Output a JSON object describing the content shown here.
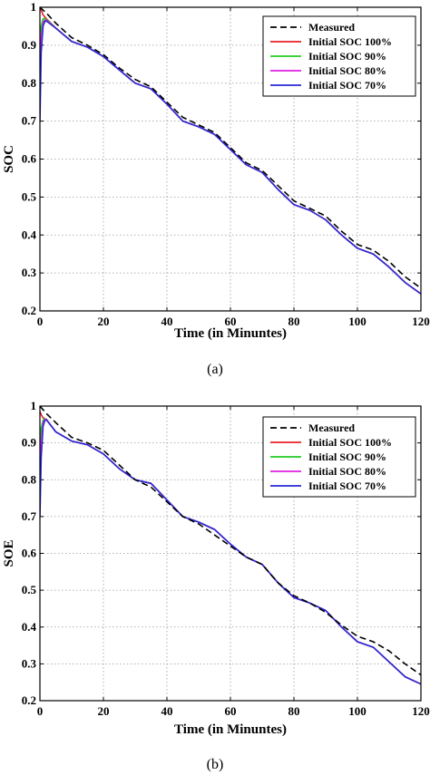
{
  "chart_data": [
    {
      "type": "line",
      "caption": "(a)",
      "xlabel": "Time (in Minuntes)",
      "ylabel": "SOC",
      "xlim": [
        0,
        120
      ],
      "ylim": [
        0.2,
        1.0
      ],
      "xticks": [
        "0",
        "20",
        "40",
        "60",
        "80",
        "100",
        "120"
      ],
      "yticks": [
        "0.2",
        "0.3",
        "0.4",
        "0.5",
        "0.6",
        "0.7",
        "0.8",
        "0.9",
        "1"
      ],
      "grid": true,
      "legend_position": "top-right",
      "series": [
        {
          "name": "Measured",
          "color": "#000000",
          "style": "dashed",
          "x": [
            0,
            2,
            5,
            10,
            15,
            20,
            25,
            30,
            35,
            40,
            45,
            50,
            55,
            60,
            65,
            70,
            75,
            80,
            85,
            90,
            95,
            100,
            105,
            110,
            115,
            120
          ],
          "y": [
            1.0,
            0.985,
            0.958,
            0.92,
            0.9,
            0.875,
            0.84,
            0.81,
            0.79,
            0.75,
            0.71,
            0.69,
            0.67,
            0.63,
            0.59,
            0.57,
            0.53,
            0.49,
            0.47,
            0.45,
            0.41,
            0.375,
            0.36,
            0.33,
            0.29,
            0.26
          ]
        },
        {
          "name": "Initial SOC 100%",
          "color": "#e8202a",
          "style": "solid",
          "x": [
            0,
            0.5,
            1,
            1.5,
            2,
            5,
            10,
            15,
            20,
            25,
            30,
            35,
            40,
            45,
            50,
            55,
            60,
            65,
            70,
            75,
            80,
            85,
            90,
            95,
            100,
            105,
            110,
            115,
            120
          ],
          "y": [
            1.0,
            0.99,
            0.98,
            0.975,
            0.97,
            0.945,
            0.91,
            0.895,
            0.87,
            0.835,
            0.8,
            0.785,
            0.745,
            0.7,
            0.685,
            0.665,
            0.625,
            0.585,
            0.565,
            0.52,
            0.48,
            0.465,
            0.44,
            0.4,
            0.365,
            0.35,
            0.315,
            0.275,
            0.245
          ]
        },
        {
          "name": "Initial SOC 90%",
          "color": "#22cc22",
          "style": "solid",
          "x": [
            0,
            0.4,
            1,
            1.5,
            2,
            5,
            10,
            15,
            20,
            25,
            30,
            35,
            40,
            45,
            50,
            55,
            60,
            65,
            70,
            75,
            80,
            85,
            90,
            95,
            100,
            105,
            110,
            115,
            120
          ],
          "y": [
            0.9,
            0.95,
            0.97,
            0.97,
            0.968,
            0.945,
            0.91,
            0.895,
            0.87,
            0.835,
            0.8,
            0.785,
            0.745,
            0.7,
            0.685,
            0.665,
            0.625,
            0.585,
            0.565,
            0.52,
            0.48,
            0.465,
            0.44,
            0.4,
            0.365,
            0.35,
            0.315,
            0.275,
            0.245
          ]
        },
        {
          "name": "Initial SOC 80%",
          "color": "#e020e0",
          "style": "solid",
          "x": [
            0,
            0.4,
            1,
            1.5,
            2,
            5,
            10,
            15,
            20,
            25,
            30,
            35,
            40,
            45,
            50,
            55,
            60,
            65,
            70,
            75,
            80,
            85,
            90,
            95,
            100,
            105,
            110,
            115,
            120
          ],
          "y": [
            0.8,
            0.92,
            0.96,
            0.966,
            0.966,
            0.945,
            0.91,
            0.895,
            0.87,
            0.835,
            0.8,
            0.785,
            0.745,
            0.7,
            0.685,
            0.665,
            0.625,
            0.585,
            0.565,
            0.52,
            0.48,
            0.465,
            0.44,
            0.4,
            0.365,
            0.35,
            0.315,
            0.275,
            0.245
          ]
        },
        {
          "name": "Initial SOC 70%",
          "color": "#2a2ad8",
          "style": "solid",
          "x": [
            0,
            0.4,
            1,
            1.5,
            2,
            5,
            10,
            15,
            20,
            25,
            30,
            35,
            40,
            45,
            50,
            55,
            60,
            65,
            70,
            75,
            80,
            85,
            90,
            95,
            100,
            105,
            110,
            115,
            120
          ],
          "y": [
            0.7,
            0.88,
            0.95,
            0.962,
            0.964,
            0.945,
            0.91,
            0.895,
            0.87,
            0.835,
            0.8,
            0.785,
            0.745,
            0.7,
            0.685,
            0.665,
            0.625,
            0.585,
            0.565,
            0.52,
            0.48,
            0.465,
            0.44,
            0.4,
            0.365,
            0.35,
            0.315,
            0.275,
            0.245
          ]
        }
      ]
    },
    {
      "type": "line",
      "caption": "(b)",
      "xlabel": "Time (in Minuntes)",
      "ylabel": "SOE",
      "xlim": [
        0,
        120
      ],
      "ylim": [
        0.2,
        1.0
      ],
      "xticks": [
        "0",
        "20",
        "40",
        "60",
        "80",
        "100",
        "120"
      ],
      "yticks": [
        "0.2",
        "0.3",
        "0.4",
        "0.5",
        "0.6",
        "0.7",
        "0.8",
        "0.9",
        "1"
      ],
      "grid": true,
      "legend_position": "top-right",
      "series": [
        {
          "name": "Measured",
          "color": "#000000",
          "style": "dashed",
          "x": [
            0,
            2,
            5,
            10,
            15,
            20,
            25,
            30,
            35,
            40,
            45,
            50,
            55,
            60,
            65,
            70,
            75,
            80,
            85,
            90,
            95,
            100,
            105,
            110,
            115,
            120
          ],
          "y": [
            1.0,
            0.98,
            0.955,
            0.915,
            0.9,
            0.88,
            0.84,
            0.8,
            0.78,
            0.74,
            0.7,
            0.68,
            0.65,
            0.62,
            0.59,
            0.57,
            0.52,
            0.485,
            0.465,
            0.44,
            0.405,
            0.375,
            0.36,
            0.335,
            0.3,
            0.27
          ]
        },
        {
          "name": "Initial SOC 100%",
          "color": "#e8202a",
          "style": "solid",
          "x": [
            0,
            0.5,
            1,
            1.5,
            2,
            5,
            10,
            15,
            20,
            25,
            30,
            35,
            40,
            45,
            50,
            55,
            60,
            65,
            70,
            75,
            80,
            85,
            90,
            95,
            100,
            105,
            110,
            115,
            120
          ],
          "y": [
            0.985,
            0.975,
            0.968,
            0.966,
            0.964,
            0.93,
            0.905,
            0.895,
            0.87,
            0.83,
            0.8,
            0.79,
            0.745,
            0.7,
            0.685,
            0.665,
            0.625,
            0.59,
            0.57,
            0.52,
            0.48,
            0.465,
            0.445,
            0.4,
            0.36,
            0.345,
            0.305,
            0.265,
            0.245
          ]
        },
        {
          "name": "Initial SOC 90%",
          "color": "#22cc22",
          "style": "solid",
          "x": [
            0,
            0.4,
            1,
            1.5,
            2,
            5,
            10,
            15,
            20,
            25,
            30,
            35,
            40,
            45,
            50,
            55,
            60,
            65,
            70,
            75,
            80,
            85,
            90,
            95,
            100,
            105,
            110,
            115,
            120
          ],
          "y": [
            0.9,
            0.94,
            0.962,
            0.965,
            0.964,
            0.93,
            0.905,
            0.895,
            0.87,
            0.83,
            0.8,
            0.79,
            0.745,
            0.7,
            0.685,
            0.665,
            0.625,
            0.59,
            0.57,
            0.52,
            0.48,
            0.465,
            0.445,
            0.4,
            0.36,
            0.345,
            0.305,
            0.265,
            0.245
          ]
        },
        {
          "name": "Initial SOC 80%",
          "color": "#e020e0",
          "style": "solid",
          "x": [
            0,
            0.4,
            1,
            1.5,
            2,
            5,
            10,
            15,
            20,
            25,
            30,
            35,
            40,
            45,
            50,
            55,
            60,
            65,
            70,
            75,
            80,
            85,
            90,
            95,
            100,
            105,
            110,
            115,
            120
          ],
          "y": [
            0.8,
            0.9,
            0.955,
            0.963,
            0.964,
            0.93,
            0.905,
            0.895,
            0.87,
            0.83,
            0.8,
            0.79,
            0.745,
            0.7,
            0.685,
            0.665,
            0.625,
            0.59,
            0.57,
            0.52,
            0.48,
            0.465,
            0.445,
            0.4,
            0.36,
            0.345,
            0.305,
            0.265,
            0.245
          ]
        },
        {
          "name": "Initial SOC 70%",
          "color": "#2a2ad8",
          "style": "solid",
          "x": [
            0,
            0.4,
            1,
            1.5,
            2,
            5,
            10,
            15,
            20,
            25,
            30,
            35,
            40,
            45,
            50,
            55,
            60,
            65,
            70,
            75,
            80,
            85,
            90,
            95,
            100,
            105,
            110,
            115,
            120
          ],
          "y": [
            0.7,
            0.86,
            0.945,
            0.96,
            0.963,
            0.93,
            0.905,
            0.895,
            0.87,
            0.83,
            0.8,
            0.79,
            0.745,
            0.7,
            0.685,
            0.665,
            0.625,
            0.59,
            0.57,
            0.52,
            0.48,
            0.465,
            0.445,
            0.4,
            0.36,
            0.345,
            0.305,
            0.265,
            0.245
          ]
        }
      ]
    }
  ]
}
